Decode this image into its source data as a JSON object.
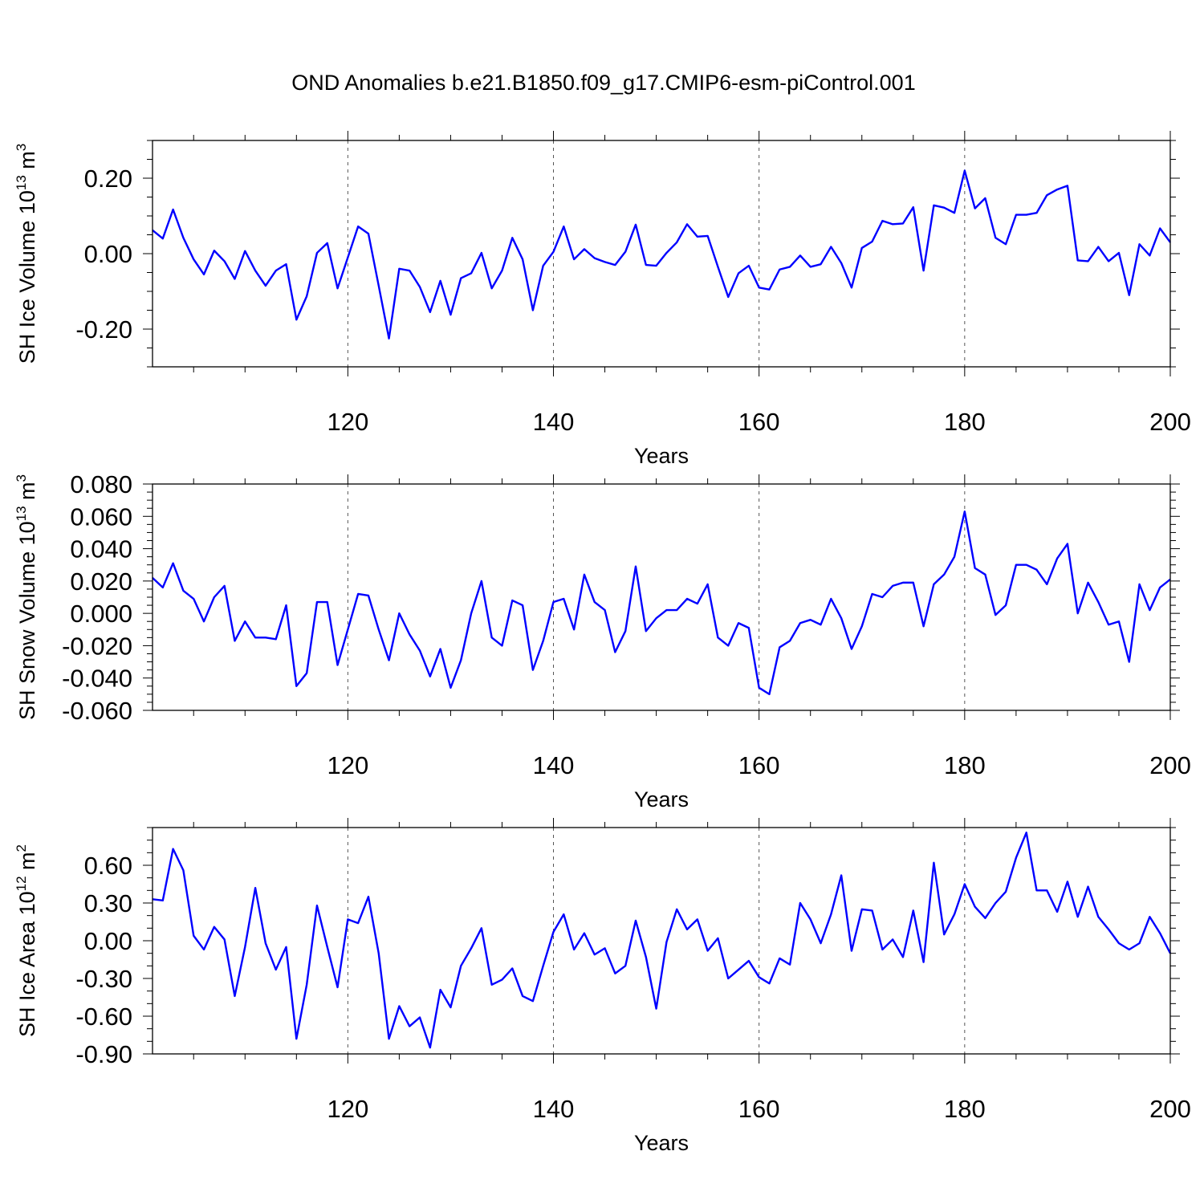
{
  "title": "OND Anomalies b.e21.B1850.f09_g17.CMIP6-esm-piControl.001",
  "line_color": "#0000ff",
  "chart_data": [
    {
      "type": "line",
      "title": "OND Anomalies b.e21.B1850.f09_g17.CMIP6-esm-piControl.001",
      "xlabel": "Years",
      "ylabel": "SH Ice Volume 10",
      "ylabel_exp": "13",
      "ylabel_unit": " m",
      "ylabel_unit_exp": "3",
      "xlim": [
        101,
        200
      ],
      "ylim": [
        -0.3,
        0.3
      ],
      "yticks": [
        -0.2,
        0.0,
        0.2
      ],
      "ytick_labels": [
        "-0.20",
        "0.00",
        "0.20"
      ],
      "yminor": [
        -0.3,
        -0.25,
        -0.15,
        -0.1,
        -0.05,
        0.05,
        0.1,
        0.15,
        0.25,
        0.3
      ],
      "xticks": [
        120,
        140,
        160,
        180,
        200
      ],
      "xtick_labels": [
        "120",
        "140",
        "160",
        "180",
        "200"
      ],
      "grid_x": true,
      "x_start": 101,
      "series": [
        {
          "name": "SH Ice Volume",
          "values": [
            0.062,
            0.04,
            0.117,
            0.042,
            -0.015,
            -0.055,
            0.008,
            -0.02,
            -0.067,
            0.007,
            -0.045,
            -0.085,
            -0.045,
            -0.028,
            -0.175,
            -0.113,
            0.002,
            0.028,
            -0.092,
            -0.01,
            0.072,
            0.053,
            -0.085,
            -0.225,
            -0.04,
            -0.045,
            -0.088,
            -0.155,
            -0.072,
            -0.162,
            -0.065,
            -0.052,
            0.002,
            -0.092,
            -0.045,
            0.042,
            -0.015,
            -0.15,
            -0.032,
            0.005,
            0.072,
            -0.015,
            0.012,
            -0.012,
            -0.022,
            -0.03,
            0.005,
            0.077,
            -0.03,
            -0.032,
            0.002,
            0.03,
            0.078,
            0.045,
            0.047,
            -0.035,
            -0.115,
            -0.052,
            -0.032,
            -0.09,
            -0.095,
            -0.042,
            -0.035,
            -0.005,
            -0.035,
            -0.028,
            0.018,
            -0.025,
            -0.09,
            0.015,
            0.032,
            0.087,
            0.078,
            0.08,
            0.123,
            -0.045,
            0.128,
            0.122,
            0.108,
            0.22,
            0.12,
            0.147,
            0.042,
            0.025,
            0.103,
            0.103,
            0.108,
            0.155,
            0.17,
            0.18,
            -0.018,
            -0.02,
            0.018,
            -0.02,
            0.002,
            -0.11,
            0.025,
            -0.005,
            0.067,
            0.03
          ]
        }
      ]
    },
    {
      "type": "line",
      "xlabel": "Years",
      "ylabel": "SH Snow Volume 10",
      "ylabel_exp": "13",
      "ylabel_unit": " m",
      "ylabel_unit_exp": "3",
      "xlim": [
        101,
        200
      ],
      "ylim": [
        -0.06,
        0.08
      ],
      "yticks": [
        -0.06,
        -0.04,
        -0.02,
        0.0,
        0.02,
        0.04,
        0.06,
        0.08
      ],
      "ytick_labels": [
        "-0.060",
        "-0.040",
        "-0.020",
        "0.000",
        "0.020",
        "0.040",
        "0.060",
        "0.080"
      ],
      "yminor": [
        -0.055,
        -0.05,
        -0.045,
        -0.035,
        -0.03,
        -0.025,
        -0.015,
        -0.01,
        -0.005,
        0.005,
        0.01,
        0.015,
        0.025,
        0.03,
        0.035,
        0.045,
        0.05,
        0.055,
        0.065,
        0.07,
        0.075
      ],
      "xticks": [
        120,
        140,
        160,
        180,
        200
      ],
      "xtick_labels": [
        "120",
        "140",
        "160",
        "180",
        "200"
      ],
      "grid_x": true,
      "x_start": 101,
      "series": [
        {
          "name": "SH Snow Volume",
          "values": [
            0.022,
            0.016,
            0.031,
            0.014,
            0.009,
            -0.005,
            0.01,
            0.017,
            -0.017,
            -0.005,
            -0.015,
            -0.015,
            -0.016,
            0.005,
            -0.045,
            -0.037,
            0.007,
            0.007,
            -0.032,
            -0.01,
            0.012,
            0.011,
            -0.01,
            -0.029,
            0.0,
            -0.013,
            -0.023,
            -0.039,
            -0.022,
            -0.046,
            -0.029,
            0.0,
            0.02,
            -0.015,
            -0.02,
            0.008,
            0.005,
            -0.035,
            -0.017,
            0.007,
            0.009,
            -0.01,
            0.024,
            0.007,
            0.002,
            -0.024,
            -0.011,
            0.029,
            -0.011,
            -0.003,
            0.002,
            0.002,
            0.009,
            0.006,
            0.018,
            -0.015,
            -0.02,
            -0.006,
            -0.009,
            -0.046,
            -0.05,
            -0.021,
            -0.017,
            -0.006,
            -0.004,
            -0.007,
            0.009,
            -0.003,
            -0.022,
            -0.008,
            0.012,
            0.01,
            0.017,
            0.019,
            0.019,
            -0.008,
            0.018,
            0.024,
            0.035,
            0.063,
            0.028,
            0.024,
            -0.001,
            0.005,
            0.03,
            0.03,
            0.027,
            0.018,
            0.034,
            0.043,
            0.0,
            0.019,
            0.007,
            -0.007,
            -0.005,
            -0.03,
            0.018,
            0.002,
            0.016,
            0.021
          ]
        }
      ]
    },
    {
      "type": "line",
      "xlabel": "Years",
      "ylabel": "SH Ice Area 10",
      "ylabel_exp": "12",
      "ylabel_unit": " m",
      "ylabel_unit_exp": "2",
      "xlim": [
        101,
        200
      ],
      "ylim": [
        -0.9,
        0.9
      ],
      "yticks": [
        -0.9,
        -0.6,
        -0.3,
        0.0,
        0.3,
        0.6
      ],
      "ytick_labels": [
        "-0.90",
        "-0.60",
        "-0.30",
        "0.00",
        "0.30",
        "0.60"
      ],
      "yminor": [
        -0.8,
        -0.7,
        -0.5,
        -0.4,
        -0.2,
        -0.1,
        0.1,
        0.2,
        0.4,
        0.5,
        0.7,
        0.8,
        0.9
      ],
      "xticks": [
        120,
        140,
        160,
        180,
        200
      ],
      "xtick_labels": [
        "120",
        "140",
        "160",
        "180",
        "200"
      ],
      "grid_x": true,
      "x_start": 101,
      "series": [
        {
          "name": "SH Ice Area",
          "values": [
            0.33,
            0.32,
            0.73,
            0.56,
            0.04,
            -0.07,
            0.11,
            0.01,
            -0.44,
            -0.05,
            0.42,
            -0.02,
            -0.23,
            -0.05,
            -0.78,
            -0.35,
            0.28,
            -0.05,
            -0.37,
            0.17,
            0.14,
            0.35,
            -0.1,
            -0.78,
            -0.52,
            -0.68,
            -0.61,
            -0.85,
            -0.39,
            -0.53,
            -0.2,
            -0.06,
            0.1,
            -0.35,
            -0.31,
            -0.22,
            -0.44,
            -0.48,
            -0.2,
            0.07,
            0.21,
            -0.07,
            0.06,
            -0.11,
            -0.06,
            -0.26,
            -0.2,
            0.16,
            -0.13,
            -0.54,
            -0.01,
            0.25,
            0.09,
            0.17,
            -0.08,
            0.02,
            -0.3,
            -0.23,
            -0.16,
            -0.29,
            -0.34,
            -0.14,
            -0.19,
            0.3,
            0.17,
            -0.02,
            0.21,
            0.52,
            -0.08,
            0.25,
            0.24,
            -0.07,
            0.01,
            -0.13,
            0.24,
            -0.17,
            0.62,
            0.05,
            0.21,
            0.45,
            0.27,
            0.18,
            0.3,
            0.39,
            0.66,
            0.86,
            0.4,
            0.4,
            0.23,
            0.47,
            0.19,
            0.43,
            0.19,
            0.09,
            -0.02,
            -0.07,
            -0.02,
            0.19,
            0.06,
            -0.1
          ]
        }
      ]
    }
  ]
}
